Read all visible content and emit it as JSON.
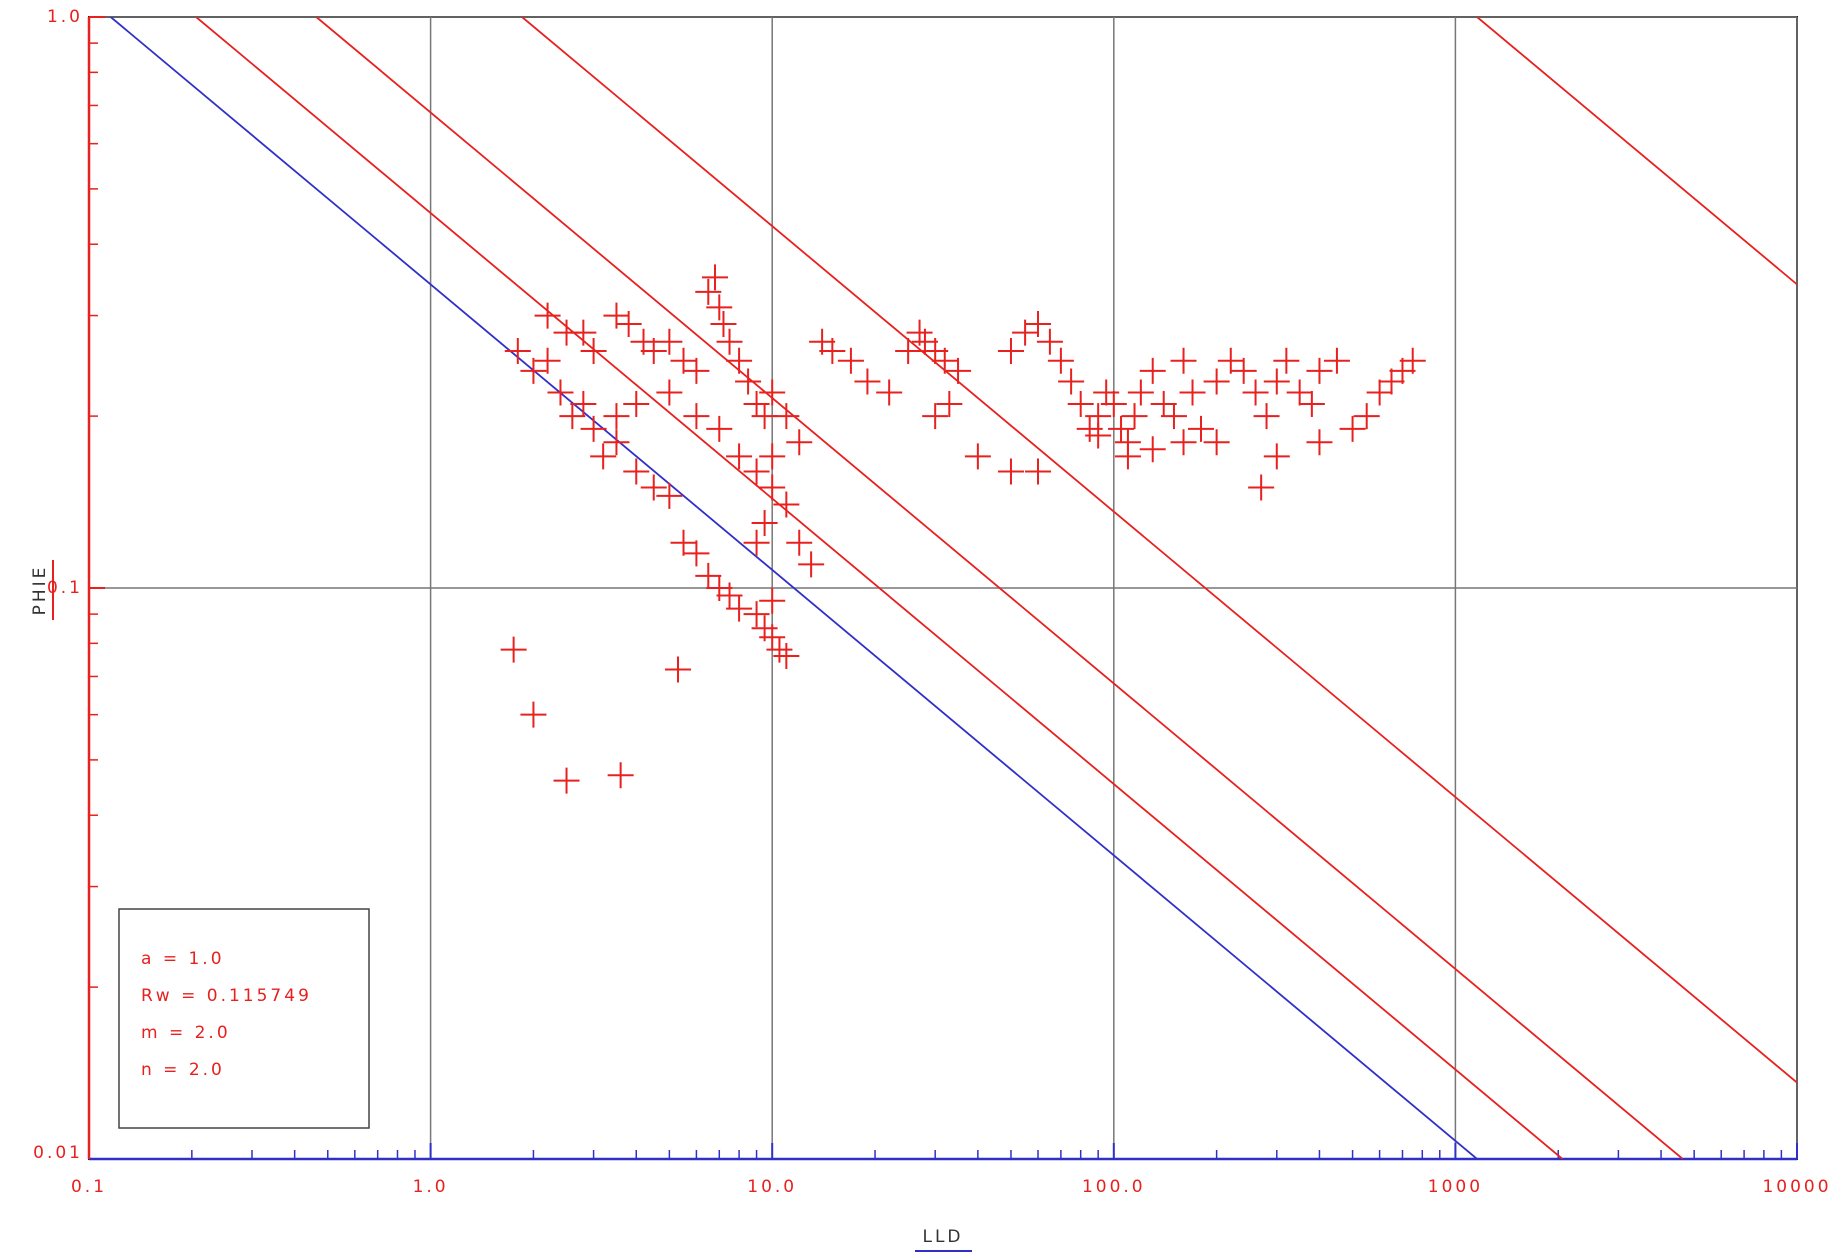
{
  "chart_data": {
    "type": "scatter",
    "x_label": "LLD",
    "y_label": "PHIE",
    "log_x": true,
    "log_y": true,
    "grid": true,
    "xlim": [
      0.1,
      10000
    ],
    "ylim": [
      0.01,
      1.0
    ],
    "xticks": [
      0.1,
      {
        "value": 1,
        "label": "1.0"
      },
      {
        "value": 10,
        "label": "10.0"
      },
      {
        "value": 100,
        "label": "100.0"
      },
      1000,
      10000
    ],
    "yticks": [
      0.01,
      {
        "value": 0.1,
        "label": "0.1"
      },
      {
        "value": 1,
        "label": "1.0"
      }
    ],
    "color": "#e8201e",
    "parameters": [
      {
        "value": 1,
        "label": "a = 1.0"
      },
      {
        "value": 0.115749,
        "label": "Rw = 0.115749"
      },
      {
        "value": 2,
        "label": "m = 2.0"
      },
      {
        "value": 2,
        "label": "n = 2.0"
      }
    ],
    "saturation_lines": [
      {
        "sw": 1,
        "color": "#3030c8"
      },
      {
        "sw": 0.75,
        "color": "#e8201e"
      },
      {
        "sw": 0.5,
        "color": "#e8201e"
      },
      {
        "sw": 0.25,
        "color": "#e8201e"
      },
      {
        "sw": 0.01,
        "color": "#e8201e"
      }
    ],
    "x": [
      1.8,
      2,
      2.2,
      2.4,
      2.6,
      2.8,
      3,
      3.2,
      3.5,
      4,
      4.5,
      5,
      5.5,
      6,
      6.5,
      7,
      7.5,
      8,
      9,
      9.5,
      10,
      10.5,
      11,
      10,
      9,
      9.5,
      10,
      11,
      12,
      13,
      2.2,
      2.5,
      2.8,
      3,
      3.5,
      3.8,
      4.2,
      4.5,
      5,
      5.5,
      6,
      6.5,
      6.8,
      7,
      7.2,
      7.5,
      8,
      8.5,
      9,
      9.5,
      10,
      11,
      12,
      6,
      5,
      4,
      3.5,
      7,
      8,
      9,
      10,
      14,
      15,
      17,
      19,
      22,
      25,
      27,
      28,
      30,
      32,
      35,
      30,
      33,
      40,
      50,
      60,
      50,
      55,
      60,
      65,
      70,
      75,
      80,
      85,
      90,
      95,
      100,
      105,
      110,
      115,
      120,
      130,
      140,
      150,
      160,
      170,
      180,
      200,
      220,
      240,
      260,
      280,
      300,
      320,
      350,
      380,
      400,
      450,
      500,
      550,
      600,
      650,
      700,
      750,
      270,
      300,
      400,
      110,
      130,
      160,
      90,
      200,
      1.75,
      2,
      2.5,
      3.6,
      5.3
    ],
    "y": [
      0.26,
      0.24,
      0.25,
      0.22,
      0.2,
      0.21,
      0.19,
      0.17,
      0.18,
      0.16,
      0.15,
      0.145,
      0.12,
      0.115,
      0.105,
      0.1,
      0.097,
      0.092,
      0.09,
      0.085,
      0.082,
      0.078,
      0.076,
      0.095,
      0.12,
      0.13,
      0.15,
      0.14,
      0.12,
      0.11,
      0.3,
      0.28,
      0.28,
      0.26,
      0.3,
      0.29,
      0.27,
      0.26,
      0.27,
      0.25,
      0.24,
      0.33,
      0.35,
      0.31,
      0.29,
      0.27,
      0.25,
      0.23,
      0.21,
      0.2,
      0.22,
      0.2,
      0.18,
      0.2,
      0.22,
      0.21,
      0.2,
      0.19,
      0.17,
      0.16,
      0.17,
      0.27,
      0.26,
      0.25,
      0.23,
      0.22,
      0.26,
      0.28,
      0.27,
      0.26,
      0.25,
      0.24,
      0.2,
      0.21,
      0.17,
      0.16,
      0.16,
      0.26,
      0.28,
      0.29,
      0.27,
      0.25,
      0.23,
      0.21,
      0.19,
      0.2,
      0.22,
      0.21,
      0.19,
      0.18,
      0.2,
      0.22,
      0.24,
      0.21,
      0.2,
      0.25,
      0.22,
      0.19,
      0.23,
      0.25,
      0.24,
      0.22,
      0.2,
      0.23,
      0.25,
      0.22,
      0.21,
      0.24,
      0.25,
      0.19,
      0.2,
      0.22,
      0.23,
      0.24,
      0.25,
      0.15,
      0.17,
      0.18,
      0.17,
      0.175,
      0.18,
      0.185,
      0.18,
      0.078,
      0.06,
      0.046,
      0.047,
      0.072
    ]
  }
}
